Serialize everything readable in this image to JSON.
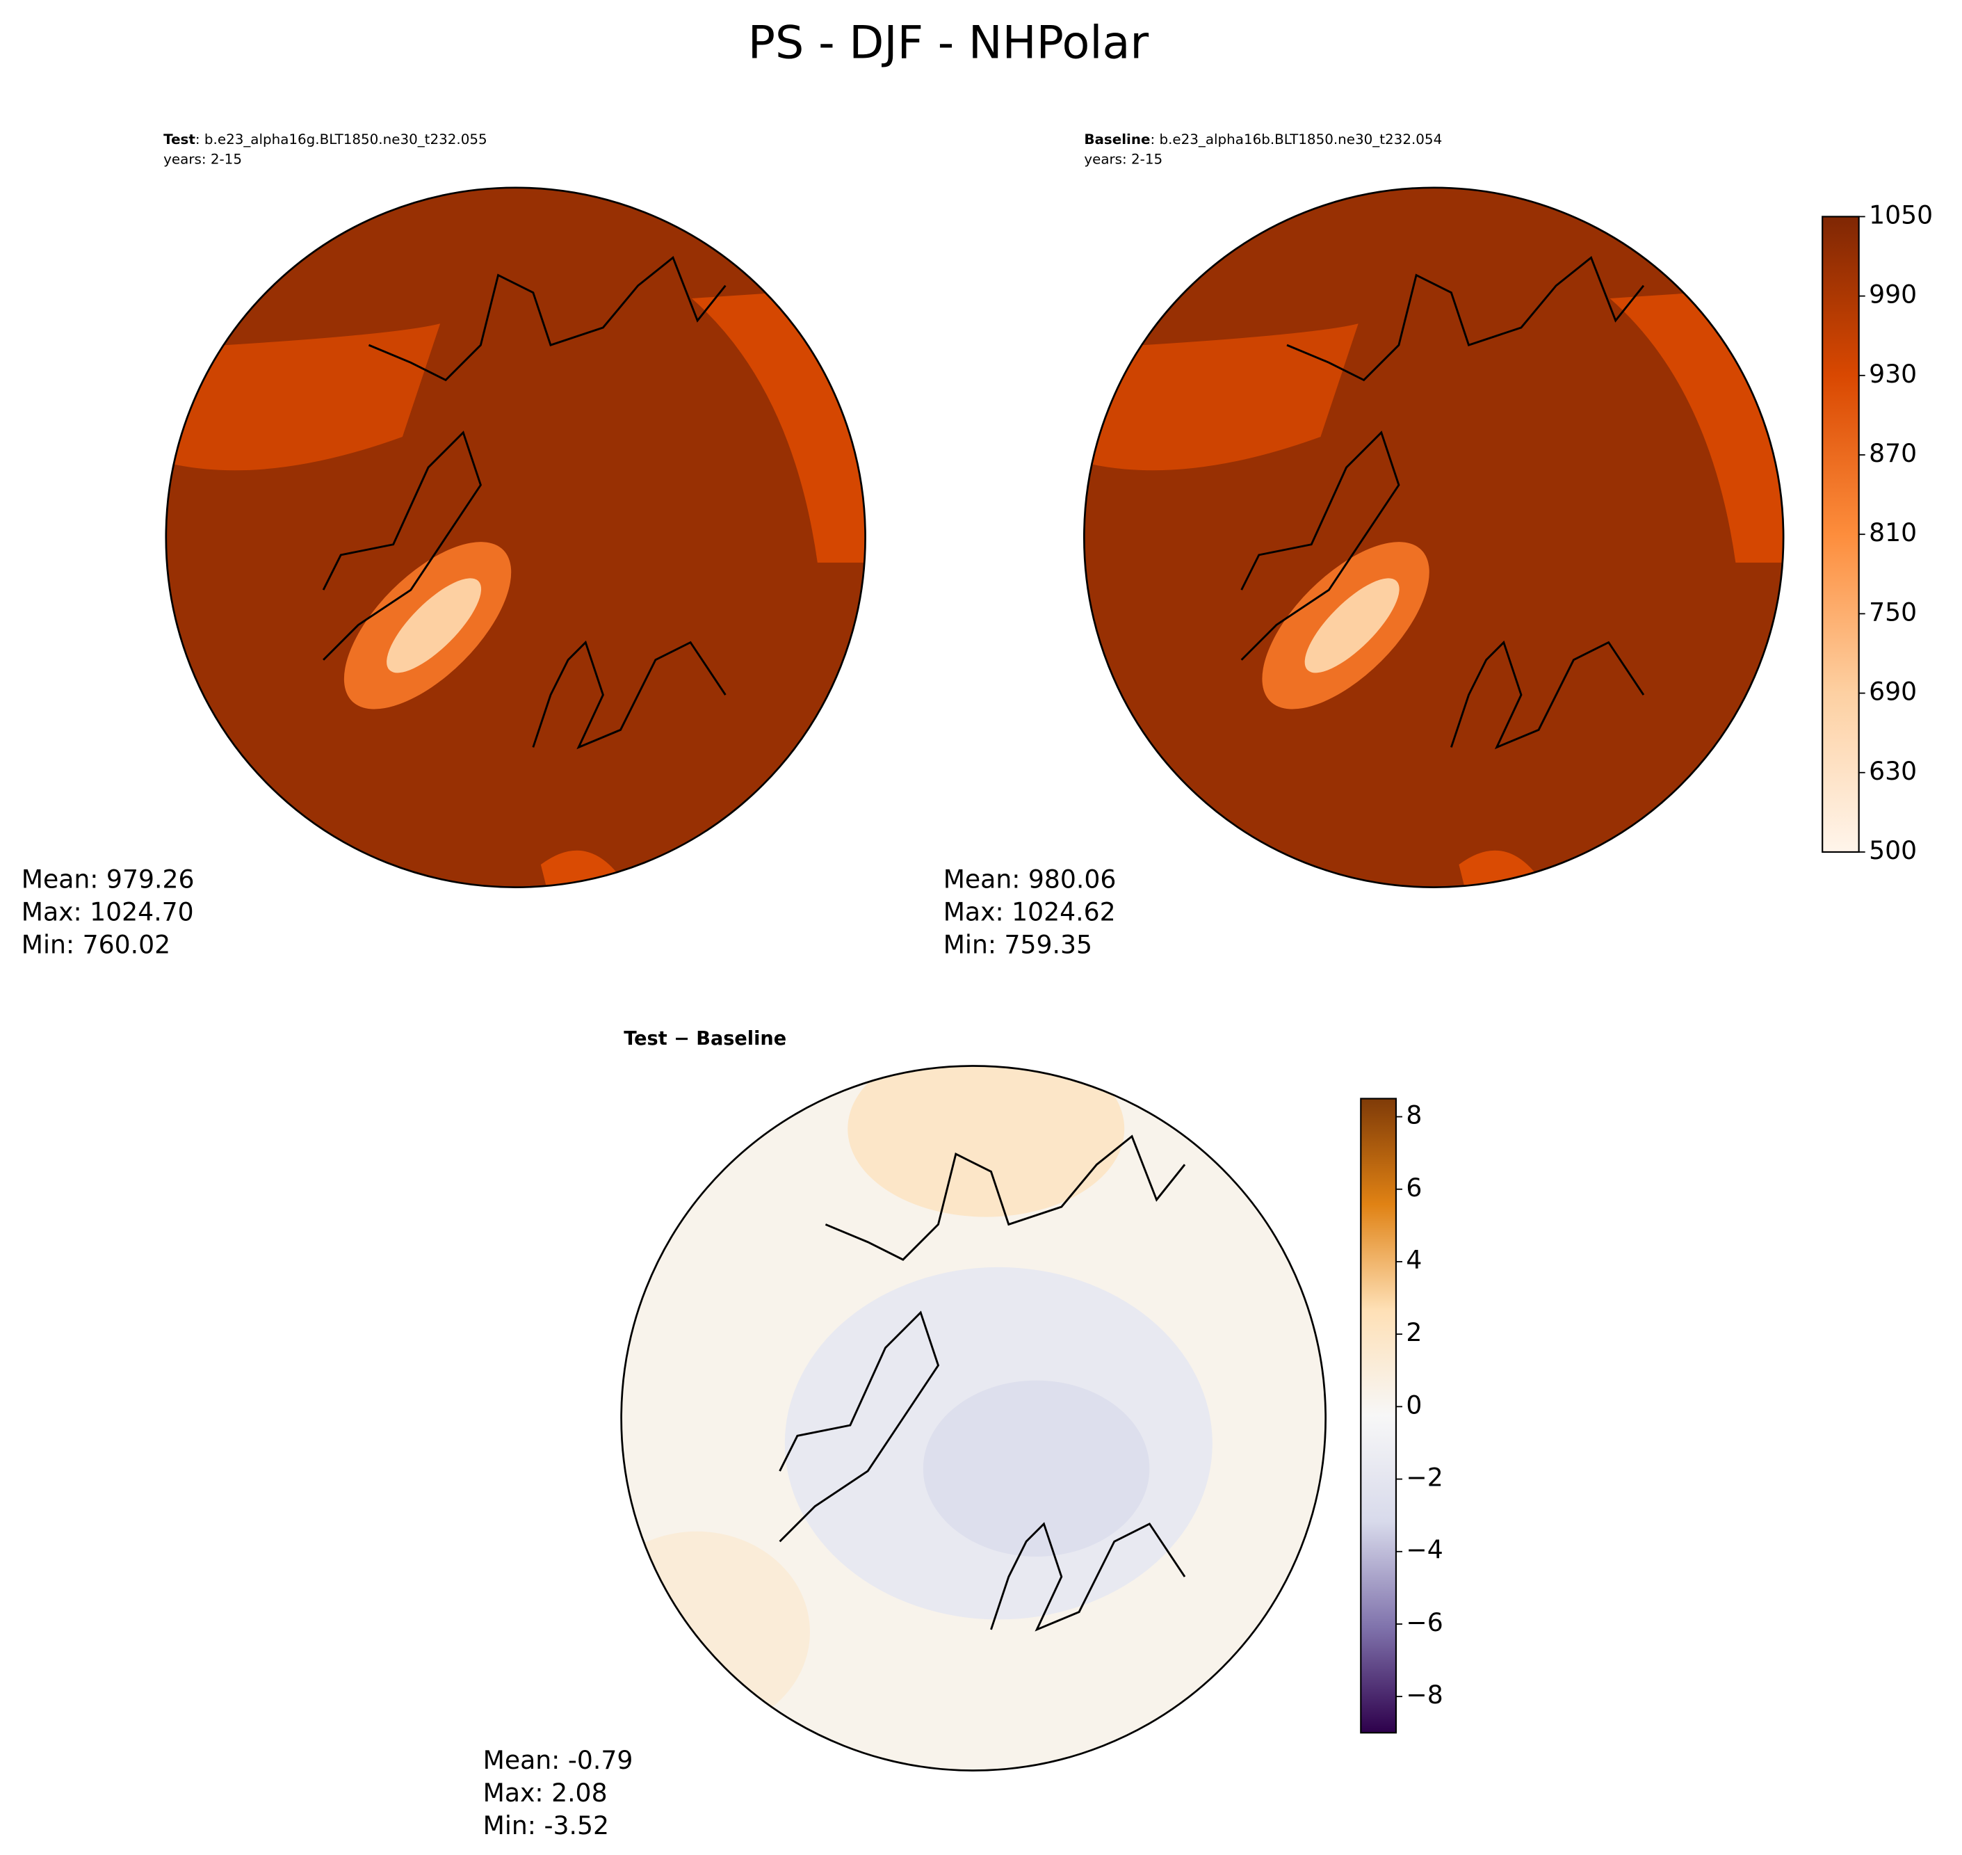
{
  "title": "PS - DJF - NHPolar",
  "chart_data": [
    {
      "type": "map",
      "label_bold": "Test",
      "label": ": b.e23_alpha16g.BLT1850.ne30_t232.055",
      "years": "years: 2-15",
      "stats": [
        "Mean: 979.26",
        "Max: 1024.70",
        "Min: 760.02"
      ]
    },
    {
      "type": "map",
      "label_bold": "Baseline",
      "label": ": b.e23_alpha16b.BLT1850.ne30_t232.054",
      "years": "years: 2-15",
      "stats": [
        "Mean: 980.06",
        "Max: 1024.62",
        "Min: 759.35"
      ],
      "colormap": [
        "#fff5eb",
        "#fdd0a2",
        "#fd8d3c",
        "#d94801",
        "#7f2704"
      ],
      "colorbar_ticks": [
        500,
        630,
        690,
        750,
        810,
        870,
        930,
        990,
        1050
      ]
    },
    {
      "type": "map",
      "label_bold": "Test − Baseline",
      "stats": [
        "Mean: -0.79",
        "Max:  2.08",
        "Min: -3.52"
      ],
      "colormap": [
        "#2d004b",
        "#8073ac",
        "#d8daeb",
        "#f7f7f7",
        "#fee0b6",
        "#e08214",
        "#7f3b08"
      ],
      "ylim": [
        -9,
        8.5
      ],
      "yticks": [
        {
          "value": -8,
          "label": "−8"
        },
        {
          "value": -6,
          "label": "−6"
        },
        {
          "value": -4,
          "label": "−4"
        },
        {
          "value": -2,
          "label": "−2"
        },
        0,
        2,
        4,
        6,
        8
      ]
    }
  ]
}
